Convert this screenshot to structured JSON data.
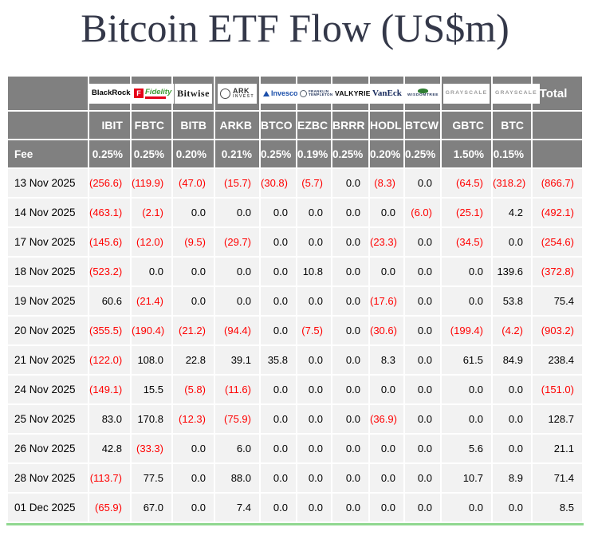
{
  "title": "Bitcoin ETF Flow (US$m)",
  "colors": {
    "header_bg": "#808080",
    "row_bg": "#f2f2f2",
    "negative": "#ff0000",
    "positive": "#000000",
    "title_text": "#343849",
    "table_bottom_accent": "#90d890"
  },
  "table": {
    "fee_label": "Fee",
    "total_label": "Total",
    "providers": [
      {
        "id": "blackrock",
        "label": "BlackRock"
      },
      {
        "id": "fidelity",
        "label": "Fidelity"
      },
      {
        "id": "bitwise",
        "label": "Bitwise"
      },
      {
        "id": "ark",
        "label": "ARK",
        "sublabel": "INVEST"
      },
      {
        "id": "invesco",
        "label": "Invesco"
      },
      {
        "id": "franklin",
        "label": "FRANKLIN",
        "sublabel": "TEMPLETON"
      },
      {
        "id": "valkyrie",
        "label": "VALKYRIE"
      },
      {
        "id": "vaneck",
        "label": "VanEck"
      },
      {
        "id": "wisdomtree",
        "label": "WISDOMTREE"
      },
      {
        "id": "grayscale",
        "label": "GRAYSCALE"
      },
      {
        "id": "grayscale2",
        "label": "GRAYSCALE"
      }
    ],
    "tickers": [
      "IBIT",
      "FBTC",
      "BITB",
      "ARKB",
      "BTCO",
      "EZBC",
      "BRRR",
      "HODL",
      "BTCW",
      "GBTC",
      "BTC"
    ],
    "fees": [
      "0.25%",
      "0.25%",
      "0.20%",
      "0.21%",
      "0.25%",
      "0.19%",
      "0.25%",
      "0.20%",
      "0.25%",
      "1.50%",
      "0.15%"
    ]
  },
  "chart_data": {
    "type": "table",
    "title": "Bitcoin ETF Flow (US$m)",
    "unit": "US$m",
    "columns": [
      "IBIT",
      "FBTC",
      "BITB",
      "ARKB",
      "BTCO",
      "EZBC",
      "BRRR",
      "HODL",
      "BTCW",
      "GBTC",
      "BTC",
      "Total"
    ],
    "negative_format": "parentheses-red",
    "rows": [
      {
        "date": "13 Nov 2025",
        "values": [
          -256.6,
          -119.9,
          -47.0,
          -15.7,
          -30.8,
          -5.7,
          0.0,
          -8.3,
          0.0,
          -64.5,
          -318.2
        ],
        "total": -866.7
      },
      {
        "date": "14 Nov 2025",
        "values": [
          -463.1,
          -2.1,
          0.0,
          0.0,
          0.0,
          0.0,
          0.0,
          0.0,
          -6.0,
          -25.1,
          4.2
        ],
        "total": -492.1
      },
      {
        "date": "17 Nov 2025",
        "values": [
          -145.6,
          -12.0,
          -9.5,
          -29.7,
          0.0,
          0.0,
          0.0,
          -23.3,
          0.0,
          -34.5,
          0.0
        ],
        "total": -254.6
      },
      {
        "date": "18 Nov 2025",
        "values": [
          -523.2,
          0.0,
          0.0,
          0.0,
          0.0,
          10.8,
          0.0,
          0.0,
          0.0,
          0.0,
          139.6
        ],
        "total": -372.8
      },
      {
        "date": "19 Nov 2025",
        "values": [
          60.6,
          -21.4,
          0.0,
          0.0,
          0.0,
          0.0,
          0.0,
          -17.6,
          0.0,
          0.0,
          53.8
        ],
        "total": 75.4
      },
      {
        "date": "20 Nov 2025",
        "values": [
          -355.5,
          -190.4,
          -21.2,
          -94.4,
          0.0,
          -7.5,
          0.0,
          -30.6,
          0.0,
          -199.4,
          -4.2
        ],
        "total": -903.2
      },
      {
        "date": "21 Nov 2025",
        "values": [
          -122.0,
          108.0,
          22.8,
          39.1,
          35.8,
          0.0,
          0.0,
          8.3,
          0.0,
          61.5,
          84.9
        ],
        "total": 238.4
      },
      {
        "date": "24 Nov 2025",
        "values": [
          -149.1,
          15.5,
          -5.8,
          -11.6,
          0.0,
          0.0,
          0.0,
          0.0,
          0.0,
          0.0,
          0.0
        ],
        "total": -151.0
      },
      {
        "date": "25 Nov 2025",
        "values": [
          83.0,
          170.8,
          -12.3,
          -75.9,
          0.0,
          0.0,
          0.0,
          -36.9,
          0.0,
          0.0,
          0.0
        ],
        "total": 128.7
      },
      {
        "date": "26 Nov 2025",
        "values": [
          42.8,
          -33.3,
          0.0,
          6.0,
          0.0,
          0.0,
          0.0,
          0.0,
          0.0,
          5.6,
          0.0
        ],
        "total": 21.1
      },
      {
        "date": "28 Nov 2025",
        "values": [
          -113.7,
          77.5,
          0.0,
          88.0,
          0.0,
          0.0,
          0.0,
          0.0,
          0.0,
          10.7,
          8.9
        ],
        "total": 71.4
      },
      {
        "date": "01 Dec 2025",
        "values": [
          -65.9,
          67.0,
          0.0,
          7.4,
          0.0,
          0.0,
          0.0,
          0.0,
          0.0,
          0.0,
          0.0
        ],
        "total": 8.5
      }
    ]
  }
}
